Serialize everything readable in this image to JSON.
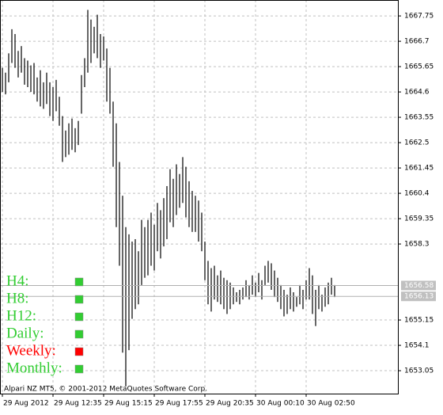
{
  "chart_data": {
    "type": "range-bar",
    "categories": [
      "29 Aug 2012",
      null,
      null,
      null,
      null,
      null,
      null,
      null,
      null,
      null,
      null,
      null,
      null,
      null,
      null,
      null,
      "29 Aug 12:35",
      null,
      null,
      null,
      null,
      null,
      null,
      null,
      null,
      null,
      null,
      null,
      null,
      null,
      null,
      null,
      "29 Aug 15:15",
      null,
      null,
      null,
      null,
      null,
      null,
      null,
      null,
      null,
      null,
      null,
      null,
      null,
      null,
      null,
      "29 Aug 17:55",
      null,
      null,
      null,
      null,
      null,
      null,
      null,
      null,
      null,
      null,
      null,
      null,
      null,
      null,
      null,
      "29 Aug 20:35",
      null,
      null,
      null,
      null,
      null,
      null,
      null,
      null,
      null,
      null,
      null,
      null,
      null,
      null,
      null,
      "30 Aug 00:10",
      null,
      null,
      null,
      null,
      null,
      null,
      null,
      null,
      null,
      null,
      null,
      null,
      null,
      null,
      null,
      "30 Aug 02:50",
      null,
      null,
      null,
      null,
      null,
      null,
      null,
      null,
      null
    ],
    "high": [
      1665.6,
      1665.4,
      1666.2,
      1667.2,
      1667.0,
      1666.3,
      1666.5,
      1666.0,
      1665.9,
      1665.7,
      1665.8,
      1665.2,
      1665.5,
      1665.0,
      1665.4,
      1665.0,
      1664.8,
      1665.1,
      1664.4,
      1663.6,
      1663.0,
      1663.3,
      1663.5,
      1663.1,
      1663.4,
      1665.3,
      1666.0,
      1668.0,
      1667.6,
      1667.3,
      1667.8,
      1667.0,
      1666.9,
      1666.4,
      1665.6,
      1664.2,
      1663.3,
      1661.7,
      1660.3,
      1659.0,
      1658.7,
      1658.4,
      1658.5,
      1658.0,
      1659.3,
      1659.0,
      1659.3,
      1659.6,
      1659.1,
      1660.0,
      1659.7,
      1660.2,
      1660.7,
      1661.4,
      1661.0,
      1661.6,
      1661.2,
      1661.9,
      1661.5,
      1660.9,
      1660.5,
      1660.3,
      1660.1,
      1659.6,
      1658.4,
      1657.6,
      1657.3,
      1657.4,
      1657.0,
      1657.2,
      1656.9,
      1656.8,
      1656.7,
      1656.5,
      1656.3,
      1656.4,
      1656.5,
      1656.8,
      1656.6,
      1657.0,
      1656.7,
      1657.1,
      1656.8,
      1657.4,
      1657.6,
      1657.5,
      1657.2,
      1656.9,
      1656.6,
      1656.4,
      1656.2,
      1656.5,
      1656.3,
      1656.1,
      1656.6,
      1656.4,
      1656.8,
      1657.3,
      1657.0,
      1656.4,
      1656.6,
      1656.2,
      1656.5,
      1656.7,
      1656.9,
      1656.6
    ],
    "low": [
      1664.6,
      1664.5,
      1665.0,
      1665.8,
      1665.6,
      1665.2,
      1665.4,
      1664.9,
      1664.8,
      1664.6,
      1664.5,
      1664.2,
      1664.0,
      1663.9,
      1664.1,
      1663.6,
      1663.4,
      1663.8,
      1663.2,
      1661.7,
      1661.9,
      1662.0,
      1662.2,
      1662.1,
      1662.4,
      1663.7,
      1664.8,
      1665.4,
      1665.8,
      1666.2,
      1666.0,
      1665.6,
      1665.9,
      1664.2,
      1663.7,
      1661.5,
      1659.0,
      1657.4,
      1653.8,
      1652.4,
      1653.9,
      1655.2,
      1655.6,
      1655.8,
      1656.6,
      1656.9,
      1657.0,
      1657.4,
      1657.2,
      1658.0,
      1657.7,
      1658.2,
      1658.5,
      1659.2,
      1659.0,
      1659.5,
      1659.8,
      1660.0,
      1659.4,
      1659.0,
      1658.8,
      1658.8,
      1658.4,
      1658.0,
      1656.8,
      1655.8,
      1655.5,
      1656.0,
      1655.9,
      1655.8,
      1655.6,
      1655.4,
      1655.6,
      1655.8,
      1655.9,
      1655.8,
      1656.0,
      1656.1,
      1656.0,
      1656.2,
      1656.1,
      1656.3,
      1656.0,
      1656.6,
      1656.7,
      1656.4,
      1656.1,
      1655.9,
      1655.6,
      1655.3,
      1655.4,
      1655.6,
      1655.5,
      1655.7,
      1655.8,
      1655.6,
      1656.0,
      1656.0,
      1655.4,
      1654.9,
      1655.6,
      1655.5,
      1655.7,
      1655.8,
      1656.2,
      1656.1
    ],
    "color": "#000000",
    "ylim": [
      1652.1,
      1668.41
    ],
    "yticks": [
      1667.75,
      1666.7,
      1665.65,
      1664.6,
      1663.55,
      1662.5,
      1661.45,
      1660.4,
      1659.35,
      1658.3,
      1655.15,
      1654.1,
      1653.05
    ],
    "price_lines": [
      1656.58,
      1656.13
    ],
    "grid": true,
    "copyright": "Alpari NZ MT5, © 2001-2012 MetaQuotes Software Corp.",
    "indicators": [
      {
        "label": "H4:",
        "color": "#32cd32"
      },
      {
        "label": "H8:",
        "color": "#32cd32"
      },
      {
        "label": "H12:",
        "color": "#32cd32"
      },
      {
        "label": "Daily:",
        "color": "#32cd32"
      },
      {
        "label": "Weekly:",
        "color": "#ff0000"
      },
      {
        "label": "Monthly:",
        "color": "#32cd32"
      }
    ]
  }
}
